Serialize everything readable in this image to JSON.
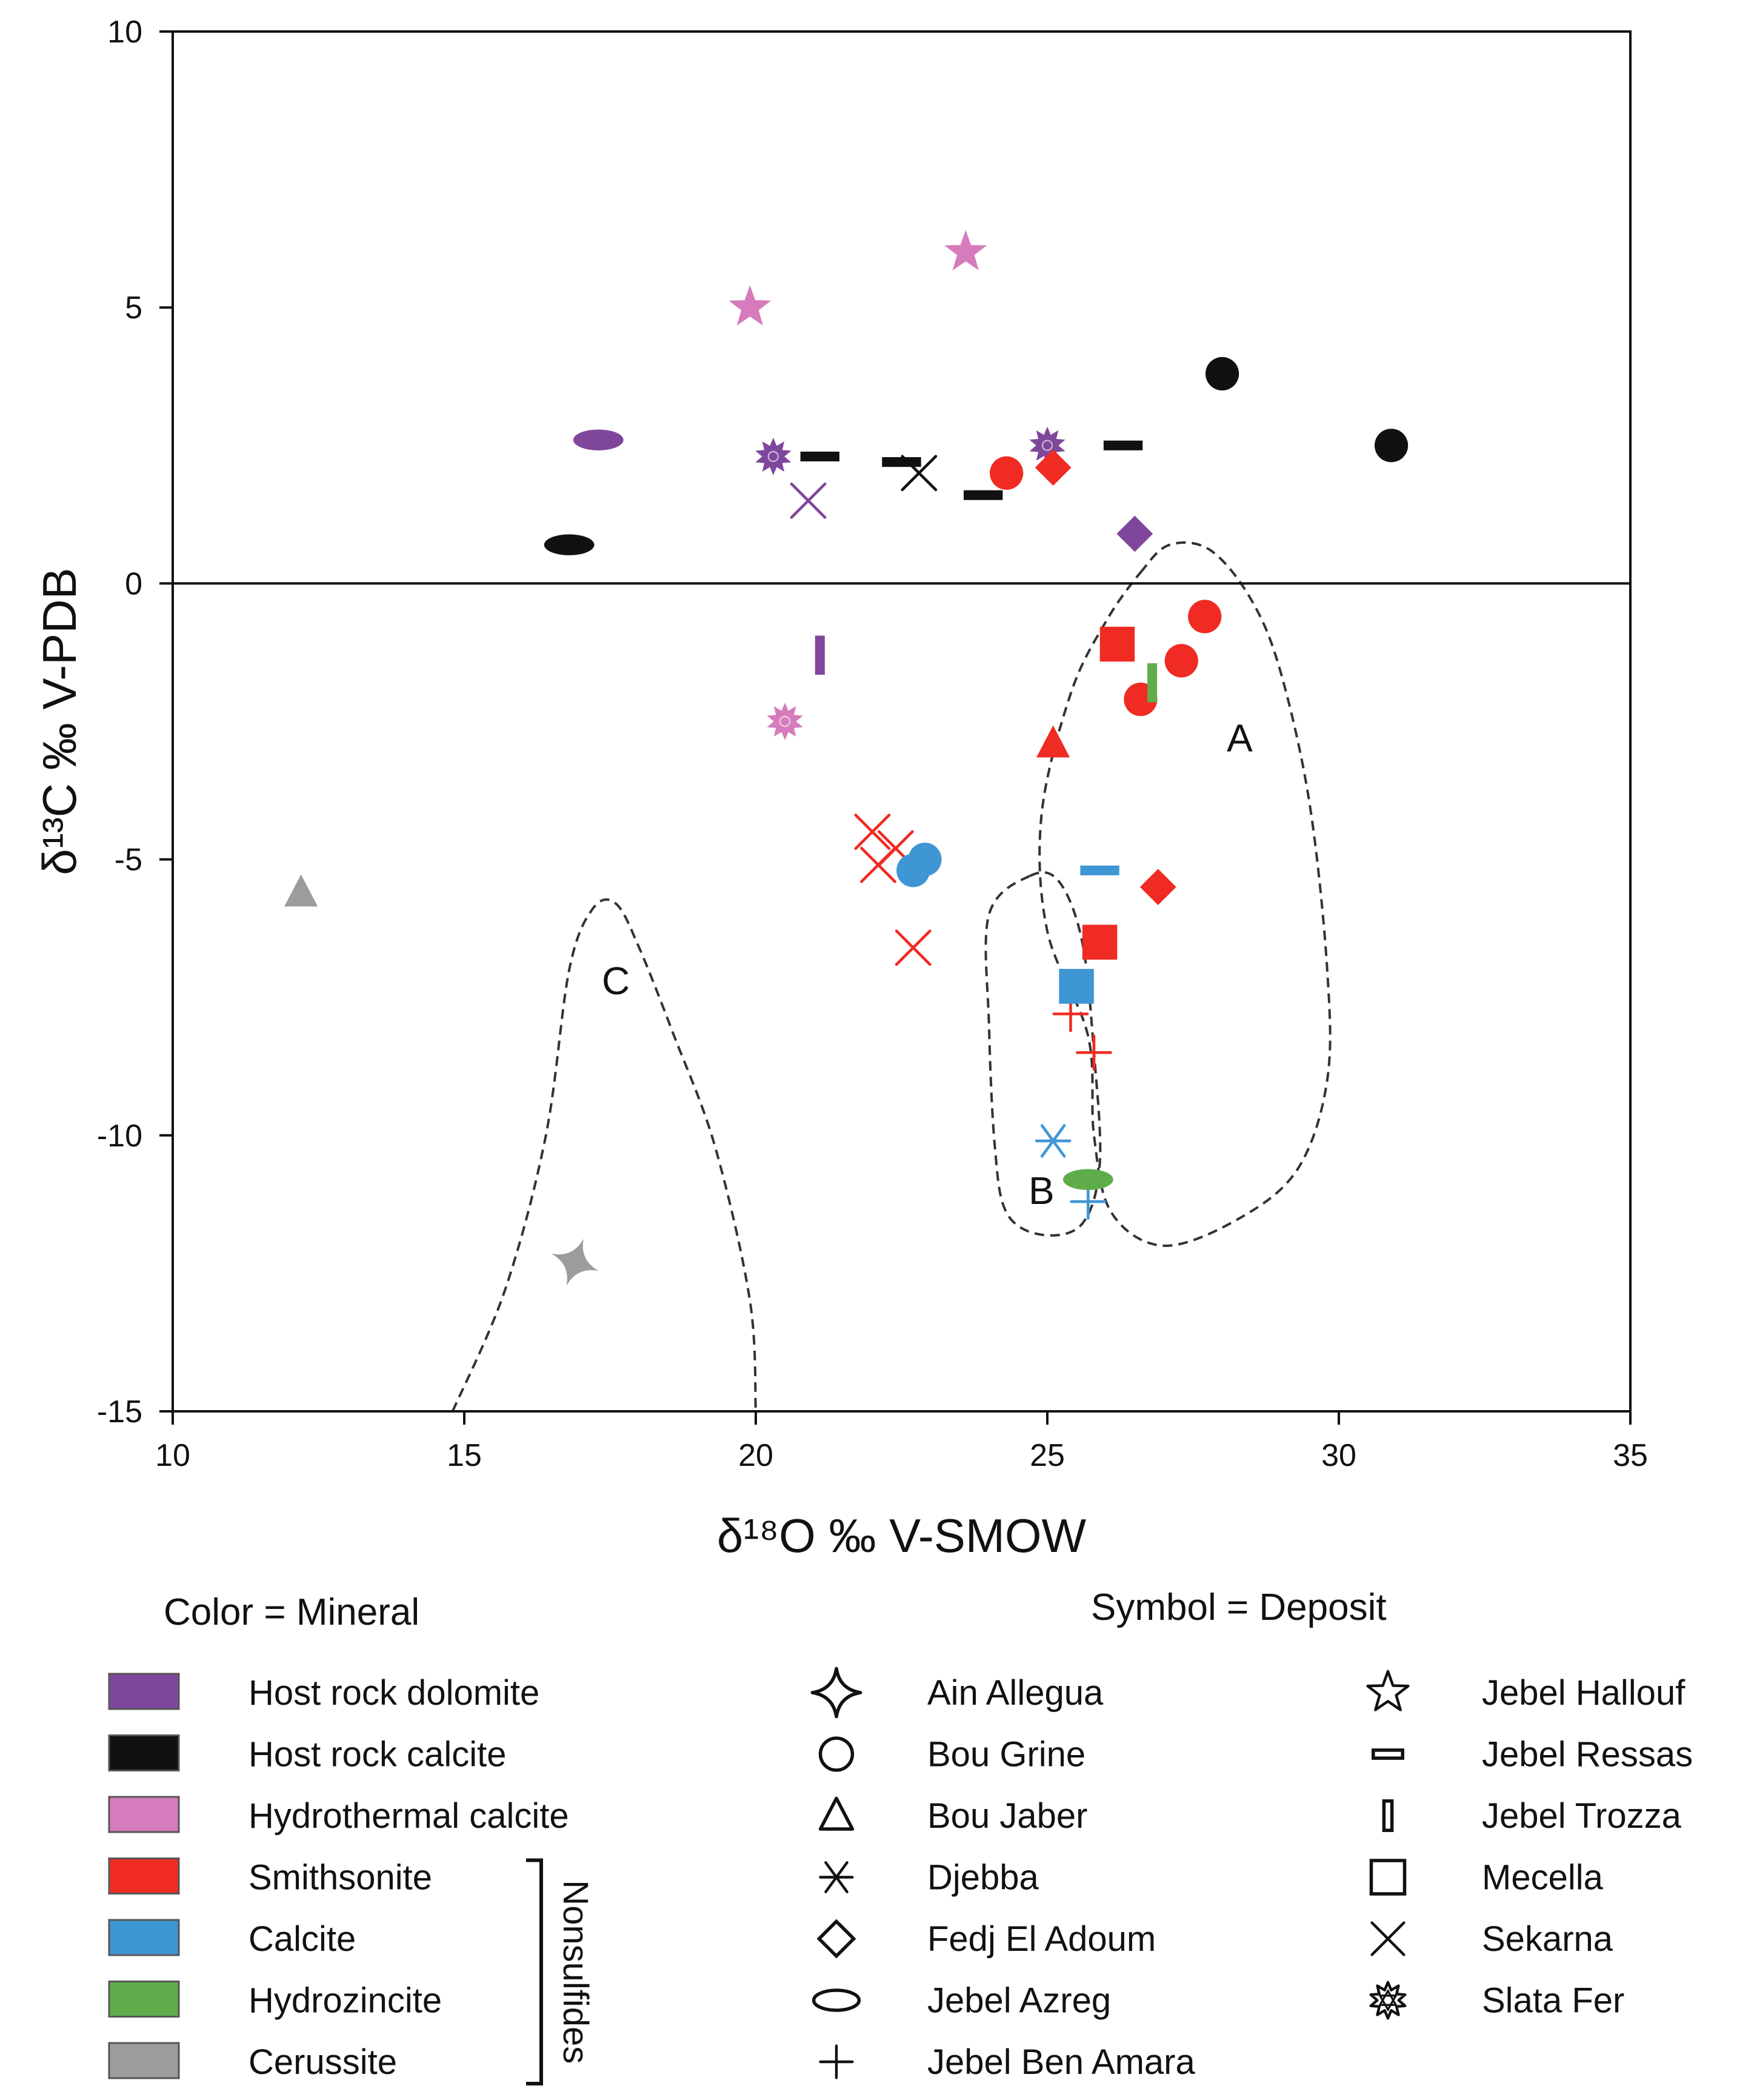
{
  "chart_data": {
    "type": "scatter",
    "xlabel": "δ¹⁸O ‰ V-SMOW",
    "ylabel": "δ¹³C ‰ V-PDB",
    "xlim": [
      10,
      35
    ],
    "ylim": [
      -15,
      10
    ],
    "x_ticks": [
      10,
      15,
      20,
      25,
      30,
      35
    ],
    "y_ticks": [
      -15,
      -10,
      -5,
      0,
      5,
      10
    ],
    "reference_line_y": 0,
    "field_labels": [
      {
        "label": "A",
        "x": 28.3,
        "y": -2.8
      },
      {
        "label": "B",
        "x": 24.9,
        "y": -11.0
      },
      {
        "label": "C",
        "x": 17.6,
        "y": -7.2
      }
    ],
    "fields": [
      {
        "name": "A",
        "outline": [
          [
            26.6,
            0.2
          ],
          [
            27.1,
            0.7
          ],
          [
            27.8,
            0.6
          ],
          [
            28.5,
            -0.3
          ],
          [
            29.0,
            -1.6
          ],
          [
            29.5,
            -4.0
          ],
          [
            29.8,
            -7.0
          ],
          [
            29.8,
            -9.0
          ],
          [
            29.3,
            -10.6
          ],
          [
            28.3,
            -11.5
          ],
          [
            27.0,
            -12.0
          ],
          [
            26.1,
            -11.4
          ],
          [
            25.8,
            -10.0
          ],
          [
            25.7,
            -8.2
          ],
          [
            25.0,
            -6.3
          ],
          [
            24.9,
            -4.2
          ],
          [
            25.4,
            -2.0
          ],
          [
            26.0,
            -0.7
          ]
        ]
      },
      {
        "name": "B",
        "outline": [
          [
            24.7,
            -5.3
          ],
          [
            25.2,
            -5.4
          ],
          [
            25.6,
            -6.5
          ],
          [
            25.8,
            -8.5
          ],
          [
            25.9,
            -10.5
          ],
          [
            25.6,
            -11.6
          ],
          [
            24.9,
            -11.8
          ],
          [
            24.3,
            -11.4
          ],
          [
            24.1,
            -10.2
          ],
          [
            24.0,
            -8.0
          ],
          [
            24.0,
            -6.0
          ]
        ]
      },
      {
        "name": "C",
        "outline": [
          [
            14.8,
            -15
          ],
          [
            15.7,
            -12.8
          ],
          [
            16.4,
            -10.0
          ],
          [
            16.8,
            -7.0
          ],
          [
            17.2,
            -5.9
          ],
          [
            17.6,
            -5.8
          ],
          [
            18.0,
            -6.6
          ],
          [
            18.6,
            -8.2
          ],
          [
            19.3,
            -10.2
          ],
          [
            19.9,
            -13.0
          ],
          [
            20.0,
            -15
          ]
        ]
      }
    ],
    "colors": {
      "host_rock_dolomite": "#7f479b",
      "host_rock_calcite": "#111111",
      "hydrothermal_calcite": "#d67bbc",
      "smithsonite": "#f02b23",
      "calcite": "#3f96d4",
      "hydrozincite": "#5fad4a",
      "cerussite": "#9c9c9c"
    },
    "series": [
      {
        "name": "Host rock dolomite",
        "points": [
          {
            "deposit": "Jebel Azreg",
            "x": 17.3,
            "y": 2.6
          },
          {
            "deposit": "Slata Fer",
            "x": 20.3,
            "y": 2.3
          },
          {
            "deposit": "Sekarna",
            "x": 20.9,
            "y": 1.5
          },
          {
            "deposit": "Slata Fer",
            "x": 25.0,
            "y": 2.5
          },
          {
            "deposit": "Fedj El Adoum",
            "x": 26.5,
            "y": 0.9
          },
          {
            "deposit": "Jebel Trozza",
            "x": 21.1,
            "y": -1.3
          }
        ]
      },
      {
        "name": "Host rock calcite",
        "points": [
          {
            "deposit": "Jebel Azreg",
            "x": 16.8,
            "y": 0.7
          },
          {
            "deposit": "Jebel Ressas",
            "x": 21.1,
            "y": 2.3
          },
          {
            "deposit": "Jebel Ressas",
            "x": 22.5,
            "y": 2.2
          },
          {
            "deposit": "Sekarna",
            "x": 22.8,
            "y": 2.0
          },
          {
            "deposit": "Jebel Ressas",
            "x": 23.9,
            "y": 1.6
          },
          {
            "deposit": "Jebel Ressas",
            "x": 26.3,
            "y": 2.5
          },
          {
            "deposit": "Bou Grine",
            "x": 28.0,
            "y": 3.8
          },
          {
            "deposit": "Bou Grine",
            "x": 30.9,
            "y": 2.5
          }
        ]
      },
      {
        "name": "Hydrothermal calcite",
        "points": [
          {
            "deposit": "Jebel Hallouf",
            "x": 19.9,
            "y": 5.0
          },
          {
            "deposit": "Jebel Hallouf",
            "x": 23.6,
            "y": 6.0
          },
          {
            "deposit": "Slata Fer",
            "x": 20.5,
            "y": -2.5
          }
        ]
      },
      {
        "name": "Smithsonite",
        "points": [
          {
            "deposit": "Bou Grine",
            "x": 24.3,
            "y": 2.0
          },
          {
            "deposit": "Fedj El Adoum",
            "x": 25.1,
            "y": 2.1
          },
          {
            "deposit": "Mecella",
            "x": 26.2,
            "y": -1.1
          },
          {
            "deposit": "Bou Grine",
            "x": 27.7,
            "y": -0.6
          },
          {
            "deposit": "Bou Grine",
            "x": 27.3,
            "y": -1.4
          },
          {
            "deposit": "Bou Grine",
            "x": 26.6,
            "y": -2.1
          },
          {
            "deposit": "Bou Jaber",
            "x": 25.1,
            "y": -2.9
          },
          {
            "deposit": "Sekarna",
            "x": 22.0,
            "y": -4.5
          },
          {
            "deposit": "Sekarna",
            "x": 22.4,
            "y": -4.8
          },
          {
            "deposit": "Sekarna",
            "x": 22.1,
            "y": -5.1
          },
          {
            "deposit": "Sekarna",
            "x": 22.7,
            "y": -6.6
          },
          {
            "deposit": "Fedj El Adoum",
            "x": 26.9,
            "y": -5.5
          },
          {
            "deposit": "Mecella",
            "x": 25.9,
            "y": -6.5
          },
          {
            "deposit": "Jebel Ben Amara",
            "x": 25.4,
            "y": -7.8
          },
          {
            "deposit": "Jebel Ben Amara",
            "x": 25.8,
            "y": -8.5
          }
        ]
      },
      {
        "name": "Calcite",
        "points": [
          {
            "deposit": "Bou Grine",
            "x": 22.9,
            "y": -5.0
          },
          {
            "deposit": "Bou Grine",
            "x": 22.7,
            "y": -5.2
          },
          {
            "deposit": "Jebel Ressas",
            "x": 25.9,
            "y": -5.2
          },
          {
            "deposit": "Mecella",
            "x": 25.5,
            "y": -7.3
          },
          {
            "deposit": "Djebba",
            "x": 25.1,
            "y": -10.1
          },
          {
            "deposit": "Jebel Ben Amara",
            "x": 25.7,
            "y": -11.2
          }
        ]
      },
      {
        "name": "Hydrozincite",
        "points": [
          {
            "deposit": "Jebel Trozza",
            "x": 26.8,
            "y": -1.8
          },
          {
            "deposit": "Jebel Azreg",
            "x": 25.7,
            "y": -10.8
          }
        ]
      },
      {
        "name": "Cerussite",
        "points": [
          {
            "deposit": "Bou Jaber",
            "x": 12.2,
            "y": -5.6
          },
          {
            "deposit": "Ain Allegua",
            "x": 16.9,
            "y": -12.3
          }
        ]
      }
    ],
    "legend_color": {
      "title": "Color = Mineral",
      "items": [
        {
          "label": "Host rock dolomite",
          "color": "#7f479b"
        },
        {
          "label": "Host rock calcite",
          "color": "#111111"
        },
        {
          "label": "Hydrothermal calcite",
          "color": "#d67bbc"
        },
        {
          "label": "Smithsonite",
          "color": "#f02b23"
        },
        {
          "label": "Calcite",
          "color": "#3f96d4"
        },
        {
          "label": "Hydrozincite",
          "color": "#5fad4a"
        },
        {
          "label": "Cerussite",
          "color": "#9c9c9c"
        }
      ],
      "bracket_label": "Nonsulfides"
    },
    "legend_symbol": {
      "title": "Symbol = Deposit",
      "items": [
        {
          "label": "Ain Allegua",
          "symbol": "sparkle"
        },
        {
          "label": "Bou Grine",
          "symbol": "circle"
        },
        {
          "label": "Bou Jaber",
          "symbol": "triangle"
        },
        {
          "label": "Djebba",
          "symbol": "asterisk"
        },
        {
          "label": "Fedj El Adoum",
          "symbol": "diamond"
        },
        {
          "label": "Jebel Azreg",
          "symbol": "ellipse"
        },
        {
          "label": "Jebel Ben Amara",
          "symbol": "plus"
        },
        {
          "label": "Jebel Hallouf",
          "symbol": "star"
        },
        {
          "label": "Jebel Ressas",
          "symbol": "hbar"
        },
        {
          "label": "Jebel Trozza",
          "symbol": "vbar"
        },
        {
          "label": "Mecella",
          "symbol": "square"
        },
        {
          "label": "Sekarna",
          "symbol": "cross"
        },
        {
          "label": "Slata Fer",
          "symbol": "starburst"
        }
      ]
    }
  }
}
